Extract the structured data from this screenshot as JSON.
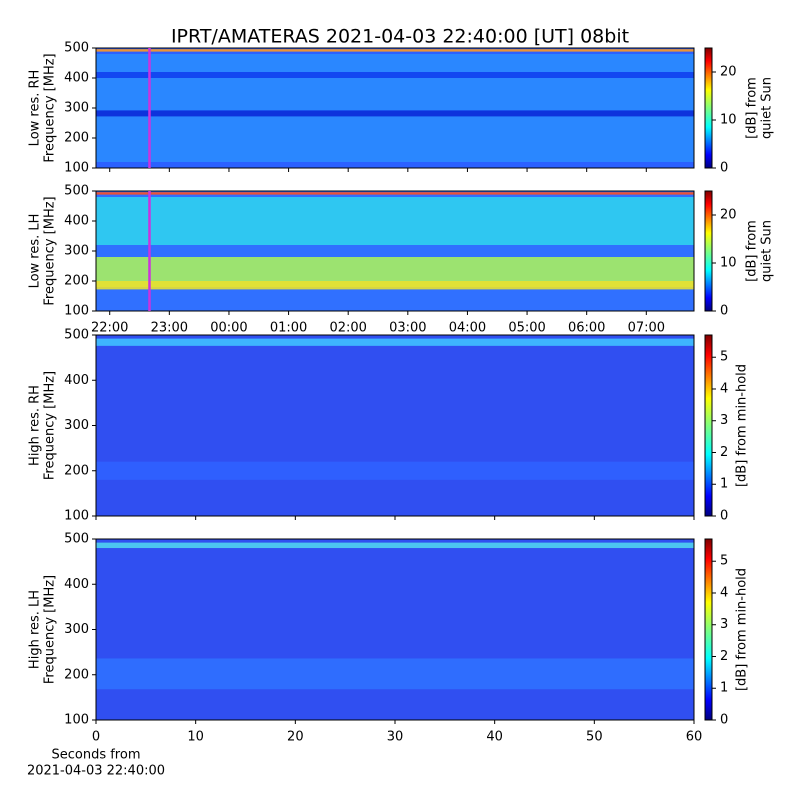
{
  "title": "IPRT/AMATERAS 2021-04-03 22:40:00 [UT]   08bit",
  "chart_data": [
    {
      "type": "heatmap",
      "ylabel": [
        "Low res. RH",
        "Frequency [MHz]"
      ],
      "ylim": [
        100,
        500
      ],
      "yticks": [
        100,
        200,
        300,
        400,
        500
      ],
      "xlim": [
        21.77,
        31.8
      ],
      "vline": 22.667,
      "vline_color": "#cc33dd",
      "clabel": [
        "[dB] from",
        "quiet Sun"
      ],
      "clim": [
        0,
        25
      ],
      "cticks": [
        0,
        10,
        20
      ]
    },
    {
      "type": "heatmap",
      "ylabel": [
        "Low res. LH",
        "Frequency [MHz]"
      ],
      "ylim": [
        100,
        500
      ],
      "yticks": [
        100,
        200,
        300,
        400,
        500
      ],
      "xlim": [
        21.77,
        31.8
      ],
      "vline": 22.667,
      "vline_color": "#cc33dd",
      "xticks": [
        {
          "value": 22,
          "label": "22:00"
        },
        {
          "value": 23,
          "label": "23:00"
        },
        {
          "value": 24,
          "label": "00:00"
        },
        {
          "value": 25,
          "label": "01:00"
        },
        {
          "value": 26,
          "label": "02:00"
        },
        {
          "value": 27,
          "label": "03:00"
        },
        {
          "value": 28,
          "label": "04:00"
        },
        {
          "value": 29,
          "label": "05:00"
        },
        {
          "value": 30,
          "label": "06:00"
        },
        {
          "value": 31,
          "label": "07:00"
        }
      ],
      "clabel": [
        "[dB] from",
        "quiet Sun"
      ],
      "clim": [
        0,
        25
      ],
      "cticks": [
        0,
        10,
        20
      ]
    },
    {
      "type": "heatmap",
      "ylabel": [
        "High res. RH",
        "Frequency [MHz]"
      ],
      "ylim": [
        100,
        500
      ],
      "yticks": [
        100,
        200,
        300,
        400,
        500
      ],
      "xlim": [
        0,
        60
      ],
      "clabel": [
        "[dB] from min-hold"
      ],
      "clim": [
        0,
        5.7
      ],
      "cticks": [
        0,
        1,
        2,
        3,
        4,
        5
      ]
    },
    {
      "type": "heatmap",
      "ylabel": [
        "High res. LH",
        "Frequency [MHz]"
      ],
      "ylim": [
        100,
        500
      ],
      "yticks": [
        100,
        200,
        300,
        400,
        500
      ],
      "xlim": [
        0,
        60
      ],
      "xticks": [
        0,
        10,
        20,
        30,
        40,
        50,
        60
      ],
      "xlabel": [
        "Seconds from",
        "2021-04-03 22:40:00"
      ],
      "clabel": [
        "[dB] from min-hold"
      ],
      "clim": [
        0,
        5.7
      ],
      "cticks": [
        0,
        1,
        2,
        3,
        4,
        5
      ]
    }
  ]
}
